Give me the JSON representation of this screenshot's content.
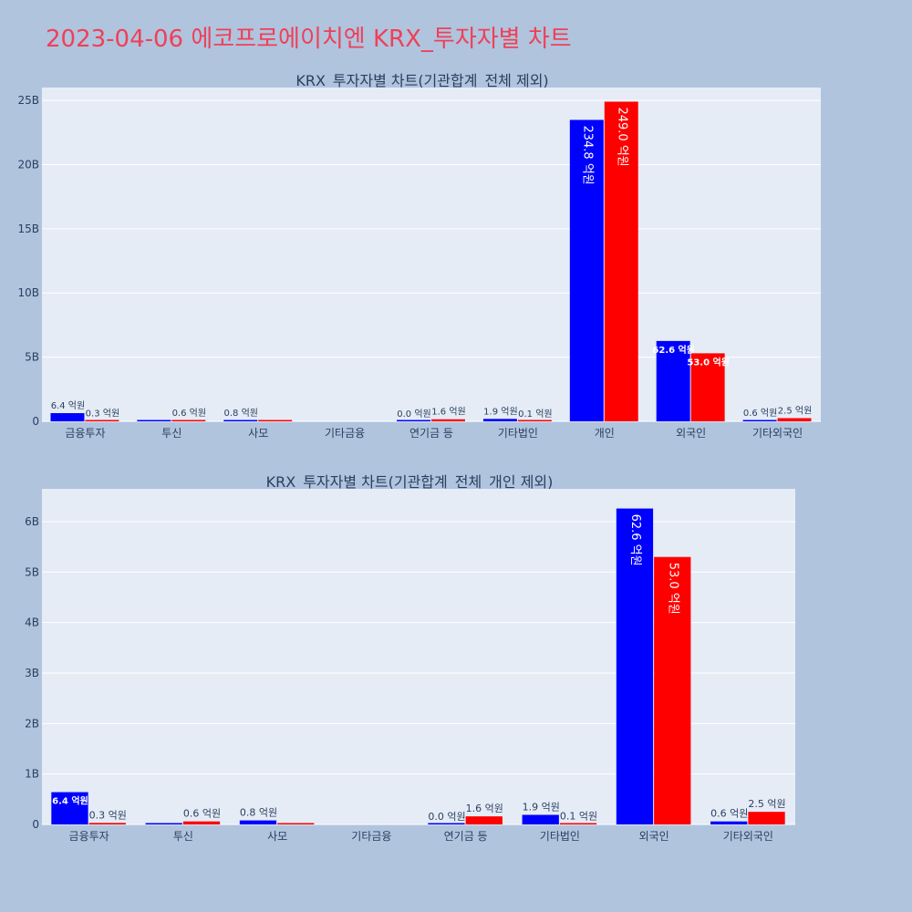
{
  "page_title": "2023-04-06 에코프로에이치엔 KRX_투자자별 차트",
  "colors": {
    "buy": "#0000ff",
    "sell": "#ff0000",
    "plot_bg": "#e5ecf6",
    "page_bg": "#b0c4de",
    "title": "#ef4058"
  },
  "chart_data": [
    {
      "type": "bar",
      "title": "KRX_투자자별 차트(기관합계_전체 제외)",
      "xlabel": "",
      "ylabel": "",
      "categories": [
        "금융투자",
        "투신",
        "사모",
        "기타금융",
        "연기금 등",
        "기타법인",
        "개인",
        "외국인",
        "기타외국인"
      ],
      "ylim": [
        0,
        26
      ],
      "yticks": [
        0,
        5,
        10,
        15,
        20,
        25
      ],
      "ytick_labels": [
        "0",
        "5B",
        "10B",
        "15B",
        "20B",
        "25B"
      ],
      "grid": true,
      "series": [
        {
          "color": "#0000ff",
          "values": [
            0.64,
            0.0,
            0.08,
            null,
            0.0,
            0.19,
            23.48,
            6.26,
            0.06
          ],
          "labels": [
            "6.4 억원",
            "",
            "0.8 억원",
            "",
            "0.0 억원",
            "1.9 억원",
            "234.8 억원",
            "62.6 억원",
            "0.6 억원"
          ]
        },
        {
          "color": "#ff0000",
          "values": [
            0.03,
            0.06,
            0.0,
            null,
            0.16,
            0.01,
            24.9,
            5.3,
            0.25
          ],
          "labels": [
            "0.3 억원",
            "0.6 억원",
            "",
            "",
            "1.6 억원",
            "0.1 억원",
            "249.0 억원",
            "53.0 억원",
            "2.5 억원"
          ]
        }
      ]
    },
    {
      "type": "bar",
      "title": "KRX_투자자별 차트(기관합계_전체_개인 제외)",
      "xlabel": "",
      "ylabel": "",
      "categories": [
        "금융투자",
        "투신",
        "사모",
        "기타금융",
        "연기금 등",
        "기타법인",
        "외국인",
        "기타외국인"
      ],
      "ylim": [
        0,
        6.65
      ],
      "yticks": [
        0,
        1,
        2,
        3,
        4,
        5,
        6
      ],
      "ytick_labels": [
        "0",
        "1B",
        "2B",
        "3B",
        "4B",
        "5B",
        "6B"
      ],
      "grid": true,
      "series": [
        {
          "color": "#0000ff",
          "values": [
            0.64,
            0.0,
            0.08,
            null,
            0.0,
            0.19,
            6.26,
            0.06
          ],
          "labels": [
            "6.4 억원",
            "",
            "0.8 억원",
            "",
            "0.0 억원",
            "1.9 억원",
            "62.6 억원",
            "0.6 억원"
          ]
        },
        {
          "color": "#ff0000",
          "values": [
            0.03,
            0.06,
            0.0,
            null,
            0.16,
            0.01,
            5.3,
            0.25
          ],
          "labels": [
            "0.3 억원",
            "0.6 억원",
            "",
            "",
            "1.6 억원",
            "0.1 억원",
            "53.0 억원",
            "2.5 억원"
          ]
        }
      ]
    }
  ]
}
